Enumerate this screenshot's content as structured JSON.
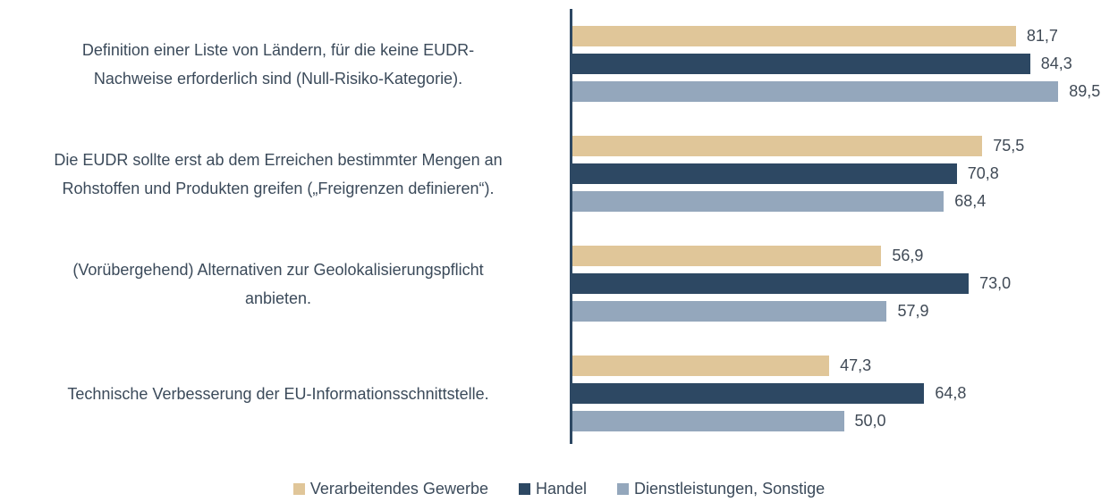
{
  "chart_data": {
    "type": "bar",
    "orientation": "horizontal",
    "categories": [
      "Definition einer Liste von Ländern, für die keine EUDR-\nNachweise erforderlich sind (Null-Risiko-Kategorie).",
      "Die EUDR sollte erst ab dem Erreichen bestimmter Mengen an\nRohstoffen und Produkten greifen („Freigrenzen definieren“).",
      "(Vorübergehend) Alternativen zur Geolokalisierungspflicht\nanbieten.",
      "Technische Verbesserung der EU-Informationsschnittstelle."
    ],
    "series": [
      {
        "name": "Verarbeitendes Gewerbe",
        "color": "#e0c699",
        "values": [
          81.7,
          75.5,
          56.9,
          47.3
        ],
        "value_labels": [
          "81,7",
          "75,5",
          "56,9",
          "47,3"
        ]
      },
      {
        "name": "Handel",
        "color": "#2d4863",
        "values": [
          84.3,
          70.8,
          73.0,
          64.8
        ],
        "value_labels": [
          "84,3",
          "70,8",
          "73,0",
          "64,8"
        ]
      },
      {
        "name": "Dienstleistungen, Sonstige",
        "color": "#94a7bc",
        "values": [
          89.5,
          68.4,
          57.9,
          50.0
        ],
        "value_labels": [
          "89,5",
          "68,4",
          "57,9",
          "50,0"
        ]
      }
    ],
    "xlim": [
      0,
      100
    ],
    "legend": "bottom"
  }
}
